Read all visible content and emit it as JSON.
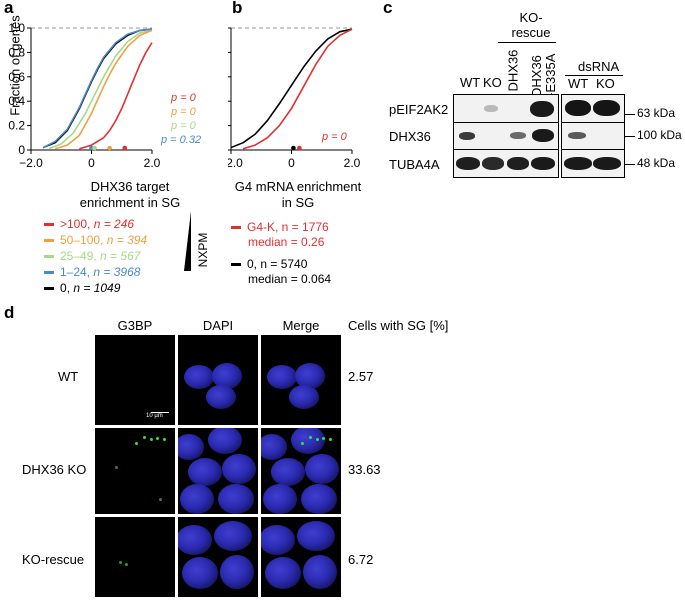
{
  "panel_a": {
    "label": "a",
    "ylabel": "Fraction of genes",
    "xlabel_line1": "DHX36 target",
    "xlabel_line2": "enrichment in SG",
    "pvalues": [
      {
        "text": "p = 0",
        "color": "#e03030"
      },
      {
        "text": "p = 0",
        "color": "#f0a040"
      },
      {
        "text": "p = 0",
        "color": "#a8d88a"
      },
      {
        "text": "p = 0.32",
        "color": "#4a88c8"
      }
    ],
    "legend": [
      {
        "range": ">100",
        "n": "n = 246",
        "color": "#e03030"
      },
      {
        "range": "50–100",
        "n": "n = 394",
        "color": "#f0a040"
      },
      {
        "range": "25–49",
        "n": "n = 567",
        "color": "#a8d88a"
      },
      {
        "range": "1–24",
        "n": "n = 3968",
        "color": "#4a88c8"
      },
      {
        "range": "0",
        "n": "n = 1049",
        "color": "#000000"
      }
    ],
    "wedge_label": "NXPM"
  },
  "panel_b": {
    "label": "b",
    "xlabel_line1": "G4 mRNA enrichment",
    "xlabel_line2": "in SG",
    "pvalue": "p = 0",
    "legend": [
      {
        "line1": "G4-K, n = 1776",
        "line2": "median = 0.26",
        "color": "#e03030"
      },
      {
        "line1": "0, n = 5740",
        "line2": "median = 0.064",
        "color": "#000000"
      }
    ]
  },
  "chart_data": [
    {
      "type": "line",
      "title": "",
      "xlabel": "DHX36 target enrichment in SG",
      "ylabel": "Fraction of genes",
      "xlim": [
        -2.0,
        2.0
      ],
      "ylim": [
        0,
        1.0
      ],
      "xticks": [
        "−2.0",
        "0",
        "2.0"
      ],
      "yticks": [
        "0",
        "0.2",
        "0.4",
        "0.6",
        "0.8",
        "1.0"
      ],
      "series": [
        {
          "name": "0, n = 1049",
          "color": "#000000",
          "x": [
            -1.6,
            -1.2,
            -0.8,
            -0.4,
            -0.2,
            0,
            0.2,
            0.4,
            0.8,
            1.2,
            1.6,
            2.0
          ],
          "y": [
            0.02,
            0.06,
            0.16,
            0.34,
            0.45,
            0.56,
            0.66,
            0.75,
            0.87,
            0.94,
            0.98,
            0.99
          ]
        },
        {
          "name": "1–24, n = 3968",
          "color": "#4a88c8",
          "x": [
            -1.6,
            -1.2,
            -0.8,
            -0.4,
            -0.2,
            0,
            0.2,
            0.4,
            0.8,
            1.2,
            1.6,
            2.0
          ],
          "y": [
            0.02,
            0.07,
            0.17,
            0.35,
            0.46,
            0.57,
            0.67,
            0.76,
            0.88,
            0.95,
            0.98,
            0.99
          ]
        },
        {
          "name": "25–49, n = 567",
          "color": "#a8d88a",
          "x": [
            -1.4,
            -1.0,
            -0.6,
            -0.2,
            0,
            0.2,
            0.4,
            0.8,
            1.2,
            1.6,
            2.0
          ],
          "y": [
            0.01,
            0.05,
            0.14,
            0.3,
            0.4,
            0.5,
            0.6,
            0.77,
            0.89,
            0.96,
            0.98
          ]
        },
        {
          "name": "50–100, n = 394",
          "color": "#f0a040",
          "x": [
            -1.2,
            -0.8,
            -0.4,
            0,
            0.2,
            0.4,
            0.6,
            0.8,
            1.2,
            1.6,
            2.0
          ],
          "y": [
            0.01,
            0.04,
            0.12,
            0.3,
            0.41,
            0.52,
            0.62,
            0.71,
            0.85,
            0.94,
            0.98
          ]
        },
        {
          "name": ">100, n = 246",
          "color": "#e03030",
          "x": [
            -0.4,
            0,
            0.4,
            0.6,
            0.8,
            1.0,
            1.2,
            1.4,
            1.6,
            1.8,
            2.0
          ],
          "y": [
            0.01,
            0.04,
            0.1,
            0.16,
            0.24,
            0.34,
            0.46,
            0.58,
            0.7,
            0.8,
            0.88
          ]
        }
      ],
      "medians": [
        {
          "x": 0.0,
          "color": "#4a88c8"
        },
        {
          "x": 0.1,
          "color": "#a8d88a"
        },
        {
          "x": 0.6,
          "color": "#f0a040"
        },
        {
          "x": 1.1,
          "color": "#e03030"
        }
      ]
    },
    {
      "type": "line",
      "title": "",
      "xlabel": "G4 mRNA enrichment in SG",
      "ylabel": "",
      "xlim": [
        -2.0,
        2.0
      ],
      "ylim": [
        0,
        1.0
      ],
      "xticks": [
        "−2.0",
        "0",
        "2.0"
      ],
      "yticks": [
        "0",
        "0.2",
        "0.4",
        "0.6",
        "0.8",
        "1.0"
      ],
      "series": [
        {
          "name": "0, n = 5740",
          "color": "#000000",
          "x": [
            -2.0,
            -1.6,
            -1.2,
            -0.8,
            -0.4,
            0,
            0.4,
            0.8,
            1.2,
            1.6,
            2.0
          ],
          "y": [
            0.02,
            0.06,
            0.13,
            0.24,
            0.38,
            0.53,
            0.68,
            0.81,
            0.91,
            0.97,
            0.99
          ]
        },
        {
          "name": "G4-K, n = 1776",
          "color": "#e03030",
          "x": [
            -1.6,
            -1.2,
            -0.8,
            -0.4,
            0,
            0.4,
            0.8,
            1.2,
            1.6,
            2.0
          ],
          "y": [
            0.01,
            0.04,
            0.1,
            0.2,
            0.34,
            0.52,
            0.7,
            0.85,
            0.94,
            0.99
          ]
        }
      ],
      "medians": [
        {
          "x": 0.064,
          "color": "#000000"
        },
        {
          "x": 0.26,
          "color": "#e03030"
        }
      ]
    }
  ],
  "panel_c": {
    "label": "c",
    "group_header_line1": "KO-",
    "group_header_line2": "rescue",
    "lanes": [
      "WT",
      "KO",
      "DHX36",
      "DHX36\n-E335A"
    ],
    "lane_dhx36_e335a_line1": "DHX36",
    "lane_dhx36_e335a_line2": "-E335A",
    "dsrna_header": "dsRNA",
    "dsrna_lanes": [
      "WT",
      "KO"
    ],
    "rows": [
      "pEIF2AK2",
      "DHX36",
      "TUBA4A"
    ],
    "markers": [
      "63 kDa",
      "100 kDa",
      "48 kDa"
    ]
  },
  "panel_d": {
    "label": "d",
    "columns": [
      "G3BP",
      "DAPI",
      "Merge"
    ],
    "metric_header": "Cells with SG [%]",
    "rows": [
      {
        "name": "WT",
        "value": "2.57"
      },
      {
        "name": "DHX36 KO",
        "value": "33.63"
      },
      {
        "name": "KO-rescue",
        "value": "6.72"
      }
    ],
    "scalebar": "10 μm"
  }
}
